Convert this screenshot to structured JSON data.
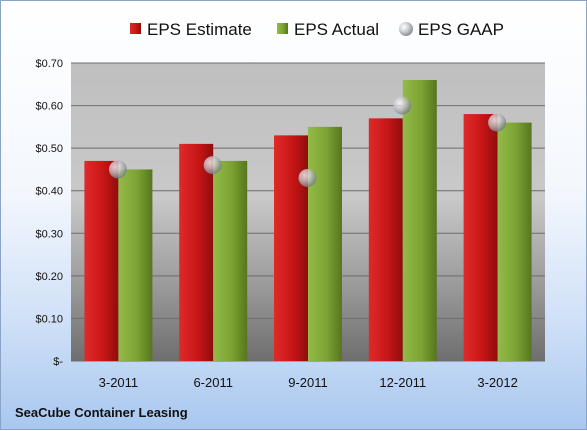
{
  "company_name": "SeaCube Container Leasing",
  "colors": {
    "eps_estimate": "#cc1f1f",
    "eps_actual": "#7fa535",
    "eps_gaap": "#b9bcc2"
  },
  "chart_data": {
    "type": "bar",
    "categories": [
      "3-2011",
      "6-2011",
      "9-2011",
      "12-2011",
      "3-2012"
    ],
    "series": [
      {
        "name": "EPS Estimate",
        "kind": "bar",
        "values": [
          0.47,
          0.51,
          0.53,
          0.57,
          0.58
        ]
      },
      {
        "name": "EPS Actual",
        "kind": "bar",
        "values": [
          0.45,
          0.47,
          0.55,
          0.66,
          0.56
        ]
      },
      {
        "name": "EPS GAAP",
        "kind": "marker",
        "values": [
          0.45,
          0.46,
          0.43,
          0.6,
          0.56
        ]
      }
    ],
    "yticks": [
      0,
      0.1,
      0.2,
      0.3,
      0.4,
      0.5,
      0.6,
      0.7
    ],
    "ytick_labels": [
      "$-",
      "$0.10",
      "$0.20",
      "$0.30",
      "$0.40",
      "$0.50",
      "$0.60",
      "$0.70"
    ],
    "ylim": [
      0,
      0.7
    ],
    "grid": true,
    "legend_position": "top"
  }
}
